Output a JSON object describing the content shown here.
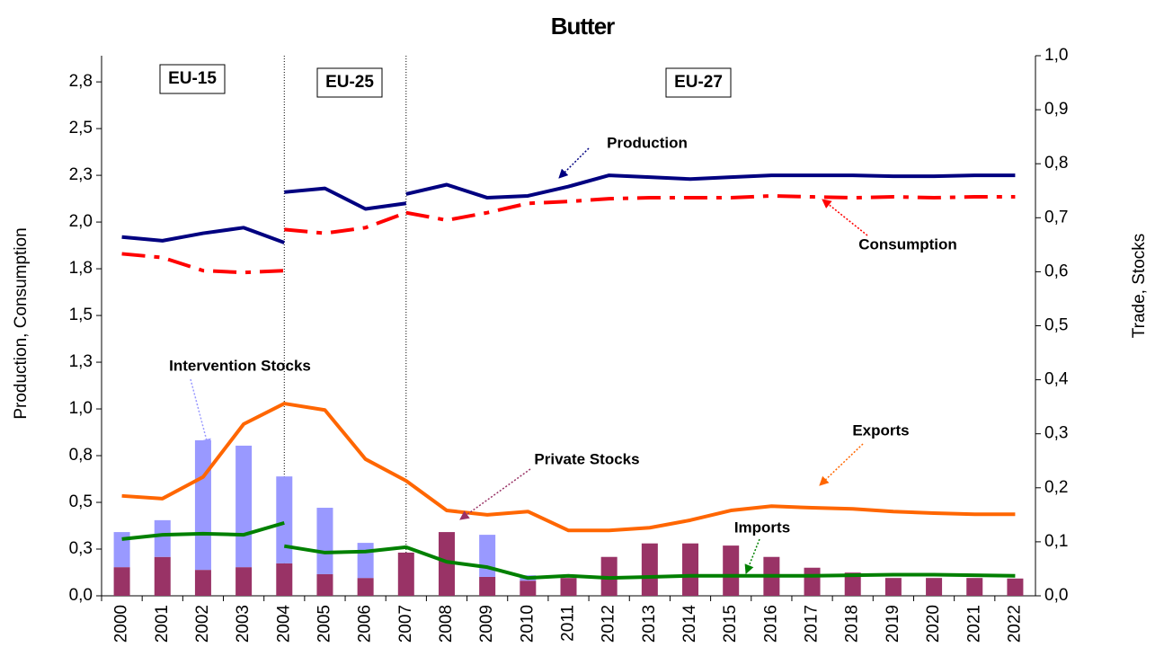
{
  "chart_data": {
    "type": "combo",
    "title": "Butter",
    "y_label": "Production, Consumption",
    "y2_label": "Trade, Stocks",
    "categories": [
      "2000",
      "2001",
      "2002",
      "2003",
      "2004",
      "2005",
      "2006",
      "2007",
      "2008",
      "2009",
      "2010",
      "2011",
      "2012",
      "2013",
      "2014",
      "2015",
      "2016",
      "2017",
      "2018",
      "2019",
      "2020",
      "2021",
      "2022"
    ],
    "ylim": [
      0,
      2.89
    ],
    "yticks": [
      {
        "value": 0,
        "label": "0,0"
      },
      {
        "value": 0.25,
        "label": "0,3"
      },
      {
        "value": 0.5,
        "label": "0,5"
      },
      {
        "value": 0.75,
        "label": "0,8"
      },
      {
        "value": 1,
        "label": "1,0"
      },
      {
        "value": 1.25,
        "label": "1,3"
      },
      {
        "value": 1.5,
        "label": "1,5"
      },
      {
        "value": 1.75,
        "label": "1,8"
      },
      {
        "value": 2,
        "label": "2,0"
      },
      {
        "value": 2.25,
        "label": "2,3"
      },
      {
        "value": 2.5,
        "label": "2,5"
      },
      {
        "value": 2.75,
        "label": "2,8"
      }
    ],
    "y2lim": [
      0,
      1
    ],
    "y2ticks": [
      {
        "value": 0,
        "label": "0,0"
      },
      {
        "value": 0.1,
        "label": "0,1"
      },
      {
        "value": 0.2,
        "label": "0,2"
      },
      {
        "value": 0.3,
        "label": "0,3"
      },
      {
        "value": 0.4,
        "label": "0,4"
      },
      {
        "value": 0.5,
        "label": "0,5"
      },
      {
        "value": 0.6,
        "label": "0,6"
      },
      {
        "value": 0.7,
        "label": "0,7"
      },
      {
        "value": 0.8,
        "label": "0,8"
      },
      {
        "value": 0.9,
        "label": "0,9"
      },
      {
        "value": 1,
        "label": "1,0"
      }
    ],
    "annotations": [
      "EU-15",
      "EU-25",
      "EU-27"
    ],
    "series": [
      {
        "name": "Production",
        "type": "line",
        "color": "#000080",
        "dash": false,
        "x": [
          "2000",
          "2001",
          "2002",
          "2003",
          "2004",
          null,
          "2004",
          "2005",
          "2006",
          "2007",
          null,
          "2007",
          "2008",
          "2009",
          "2010",
          "2011",
          "2012",
          "2013",
          "2014",
          "2015",
          "2016",
          "2017",
          "2018",
          "2019",
          "2020",
          "2021",
          "2022"
        ],
        "values": [
          1.92,
          1.9,
          1.94,
          1.97,
          1.89,
          null,
          2.16,
          2.18,
          2.07,
          2.1,
          null,
          2.15,
          2.2,
          2.13,
          2.14,
          2.19,
          2.25,
          2.24,
          2.23,
          2.24,
          2.25,
          2.25,
          2.25,
          2.245,
          2.245,
          2.25,
          2.25
        ]
      },
      {
        "name": "Consumption",
        "type": "line",
        "color": "#ff0000",
        "dash": true,
        "x": [
          "2000",
          "2001",
          "2002",
          "2003",
          "2004",
          null,
          "2004",
          "2005",
          "2006",
          "2007",
          null,
          "2007",
          "2008",
          "2009",
          "2010",
          "2011",
          "2012",
          "2013",
          "2014",
          "2015",
          "2016",
          "2017",
          "2018",
          "2019",
          "2020",
          "2021",
          "2022"
        ],
        "values": [
          1.83,
          1.81,
          1.74,
          1.73,
          1.74,
          null,
          1.96,
          1.94,
          1.97,
          2.05,
          null,
          2.05,
          2.01,
          2.05,
          2.1,
          2.11,
          2.125,
          2.13,
          2.13,
          2.13,
          2.14,
          2.135,
          2.13,
          2.135,
          2.13,
          2.135,
          2.135
        ]
      },
      {
        "name": "Exports",
        "type": "line",
        "color": "#ff6600",
        "dash": false,
        "axis": "y2",
        "x": [
          "2000",
          "2001",
          "2002",
          "2003",
          "2004",
          "2005",
          "2006",
          "2007",
          "2008",
          "2009",
          "2010",
          "2011",
          "2012",
          "2013",
          "2014",
          "2015",
          "2016",
          "2017",
          "2018",
          "2019",
          "2020",
          "2021",
          "2022"
        ],
        "values": [
          0.185,
          0.18,
          0.22,
          0.318,
          0.356,
          0.344,
          0.253,
          0.213,
          0.158,
          0.15,
          0.156,
          0.121,
          0.121,
          0.126,
          0.14,
          0.158,
          0.166,
          0.163,
          0.161,
          0.156,
          0.153,
          0.151,
          0.151
        ]
      },
      {
        "name": "Imports",
        "type": "line",
        "color": "#008000",
        "dash": false,
        "axis": "y2",
        "x": [
          "2000",
          "2001",
          "2002",
          "2003",
          "2004",
          null,
          "2004",
          "2005",
          "2006",
          "2007",
          "2008",
          "2009",
          "2010",
          "2011",
          "2012",
          "2013",
          "2014",
          "2015",
          "2016",
          "2017",
          "2018",
          "2019",
          "2020",
          "2021",
          "2022"
        ],
        "values": [
          0.105,
          0.113,
          0.115,
          0.113,
          0.135,
          null,
          0.092,
          0.08,
          0.082,
          0.09,
          0.063,
          0.053,
          0.033,
          0.037,
          0.033,
          0.035,
          0.037,
          0.037,
          0.037,
          0.037,
          0.038,
          0.039,
          0.039,
          0.038,
          0.037
        ]
      },
      {
        "name": "Private Stocks",
        "type": "bar",
        "color": "#993366",
        "axis": "y2",
        "values": [
          0.053,
          0.072,
          0.048,
          0.053,
          0.06,
          0.04,
          0.033,
          0.08,
          0.118,
          0.035,
          0.028,
          0.033,
          0.072,
          0.097,
          0.097,
          0.093,
          0.072,
          0.052,
          0.043,
          0.033,
          0.033,
          0.033,
          0.032
        ]
      },
      {
        "name": "Intervention Stocks",
        "type": "bar",
        "color": "#9999ff",
        "axis": "y2",
        "values": [
          0.065,
          0.068,
          0.24,
          0.225,
          0.161,
          0.123,
          0.065,
          0,
          0,
          0.078,
          0.01,
          0,
          0,
          0,
          0,
          0,
          0,
          0,
          0,
          0,
          0,
          0,
          0
        ]
      }
    ]
  }
}
